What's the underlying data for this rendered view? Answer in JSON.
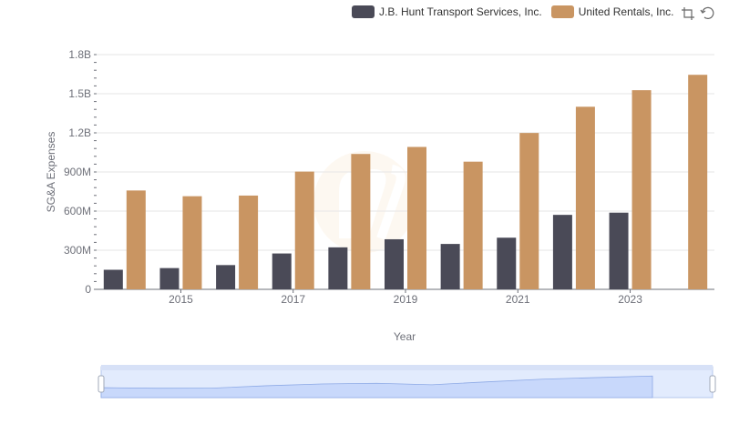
{
  "colors": {
    "jbhunt": "#4a4a57",
    "united": "#c99562",
    "grid": "#e6e6e6",
    "axis_text": "#6e7079",
    "slider_fill": "#d4e0fb",
    "slider_border": "#b9c8ea"
  },
  "legend": {
    "items": [
      {
        "label": "J.B. Hunt Transport Services, Inc."
      },
      {
        "label": "United Rentals, Inc."
      }
    ]
  },
  "toolbox": {
    "icons": [
      "zoom-icon",
      "restore-icon"
    ]
  },
  "chart_data": {
    "type": "bar",
    "categories": [
      "2014",
      "2015",
      "2016",
      "2017",
      "2018",
      "2019",
      "2020",
      "2021",
      "2022",
      "2023",
      "2024"
    ],
    "x_tick_labels": [
      "2015",
      "2017",
      "2019",
      "2021",
      "2023"
    ],
    "xlabel": "Year",
    "ylabel": "SG&A Expenses",
    "ylim": [
      0,
      1800000000
    ],
    "y_tick_labels": [
      "0",
      "300M",
      "600M",
      "900M",
      "1.2B",
      "1.5B",
      "1.8B"
    ],
    "grid": true,
    "legend_position": "top-right",
    "series": [
      {
        "name": "J.B. Hunt Transport Services, Inc.",
        "values": [
          150000000,
          163000000,
          186000000,
          275000000,
          322000000,
          384000000,
          348000000,
          396000000,
          571000000,
          588000000,
          null
        ]
      },
      {
        "name": "United Rentals, Inc.",
        "values": [
          758000000,
          714000000,
          719000000,
          903000000,
          1038000000,
          1092000000,
          979000000,
          1199000000,
          1400000000,
          1527000000,
          1645000000
        ]
      }
    ],
    "data_zoom": {
      "start": 0,
      "end": 100
    }
  }
}
